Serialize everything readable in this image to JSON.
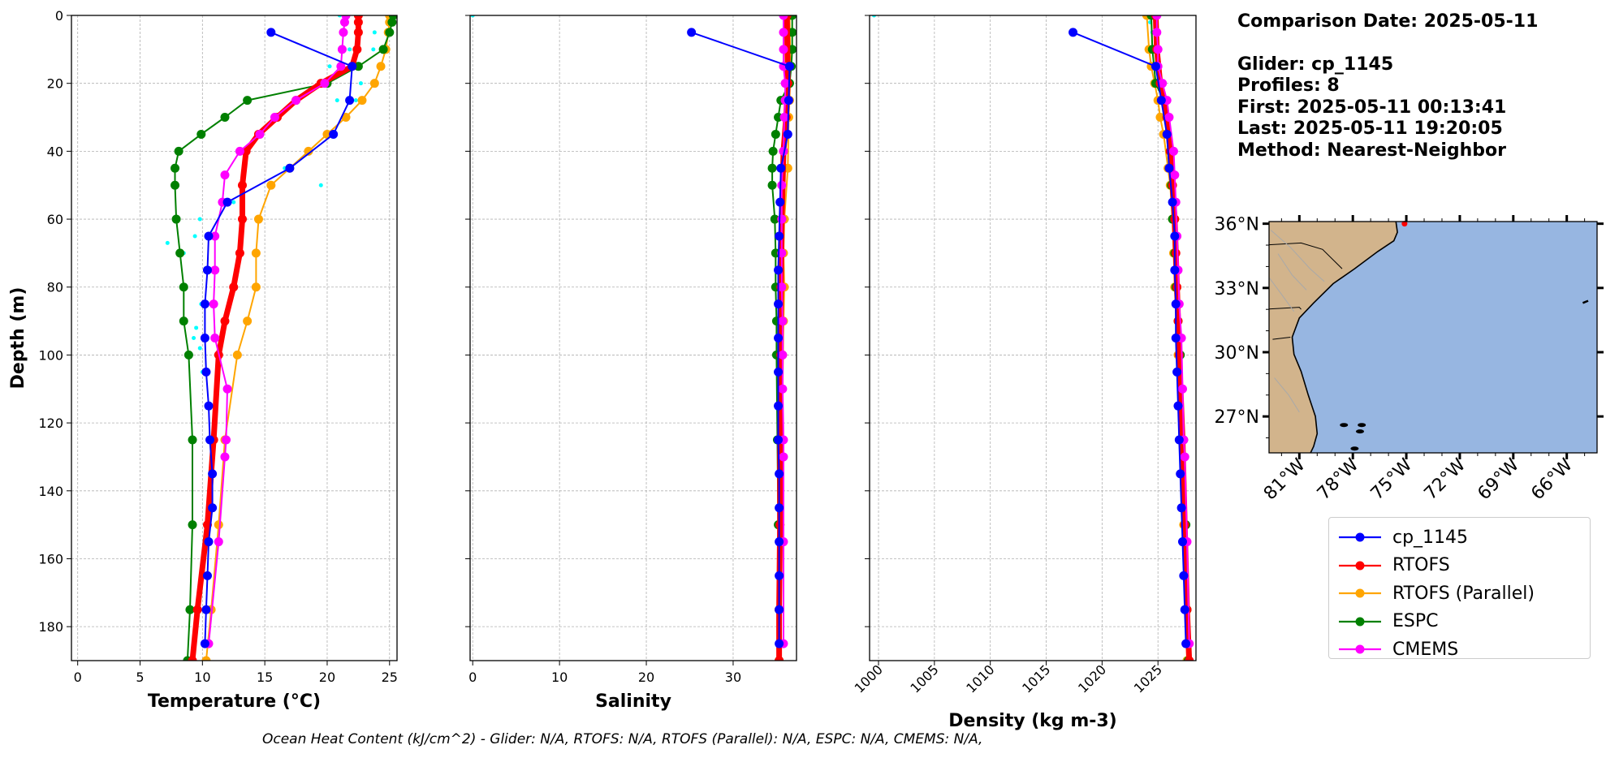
{
  "figure": {
    "footnote": "Ocean Heat Content (kJ/cm^2) - Glider: N/A,  RTOFS: N/A,  RTOFS (Parallel): N/A,  ESPC: N/A,  CMEMS: N/A,"
  },
  "info": {
    "comparison_date": "Comparison Date: 2025-05-11",
    "glider": "Glider: cp_1145",
    "profiles": "Profiles: 8",
    "first": "First: 2025-05-11 00:13:41",
    "last": "Last: 2025-05-11 19:20:05",
    "method": "Method: Nearest-Neighbor"
  },
  "legend": [
    {
      "name": "cp_1145",
      "color": "#0000ff"
    },
    {
      "name": "RTOFS",
      "color": "#ff0000"
    },
    {
      "name": "RTOFS (Parallel)",
      "color": "#ffa500"
    },
    {
      "name": "ESPC",
      "color": "#008000"
    },
    {
      "name": "CMEMS",
      "color": "#ff00ff"
    }
  ],
  "colors": {
    "glider_raw": "#00ffff",
    "ocean": "#97b6e1",
    "land": "#d2b48c",
    "rivers": "#a9a9a9"
  },
  "chart_data": [
    {
      "type": "line",
      "xlabel": "Temperature (°C)",
      "ylabel": "Depth (m)",
      "xlim": [
        -0.5,
        25.6
      ],
      "ylim": [
        190,
        0
      ],
      "xticks": [
        0,
        5,
        10,
        15,
        20,
        25
      ],
      "yticks": [
        0,
        20,
        40,
        60,
        80,
        100,
        120,
        140,
        160,
        180
      ],
      "grid": true,
      "series": [
        {
          "name": "cp_1145",
          "depth": [
            5,
            15,
            25,
            35,
            45,
            55,
            65,
            75,
            85,
            95,
            105,
            115,
            125,
            135,
            145,
            155,
            165,
            175,
            185
          ],
          "values": [
            15.5,
            22.0,
            21.8,
            20.5,
            17.0,
            12.0,
            10.5,
            10.4,
            10.2,
            10.2,
            10.3,
            10.5,
            10.6,
            10.8,
            10.8,
            10.5,
            10.4,
            10.3,
            10.2
          ]
        },
        {
          "name": "RTOFS",
          "depth": [
            0,
            2,
            5,
            10,
            15,
            20,
            25,
            30,
            35,
            40,
            50,
            60,
            70,
            80,
            90,
            100,
            125,
            150,
            175,
            190
          ],
          "values": [
            22.5,
            22.5,
            22.5,
            22.4,
            22.0,
            19.5,
            17.5,
            16.0,
            14.5,
            13.5,
            13.2,
            13.2,
            13.0,
            12.5,
            11.8,
            11.3,
            10.9,
            10.4,
            9.6,
            9.2
          ]
        },
        {
          "name": "RTOFS (Parallel)",
          "depth": [
            0,
            2,
            5,
            10,
            15,
            20,
            25,
            30,
            35,
            40,
            45,
            50,
            60,
            70,
            80,
            90,
            100,
            125,
            150,
            175,
            190
          ],
          "values": [
            25.0,
            25.0,
            24.9,
            24.7,
            24.3,
            23.8,
            22.8,
            21.5,
            20.0,
            18.5,
            17.0,
            15.5,
            14.5,
            14.3,
            14.3,
            13.6,
            12.8,
            11.8,
            11.3,
            10.7,
            10.3
          ]
        },
        {
          "name": "ESPC",
          "depth": [
            0,
            2,
            5,
            10,
            15,
            20,
            25,
            30,
            35,
            40,
            45,
            50,
            60,
            70,
            80,
            90,
            100,
            125,
            150,
            175,
            190
          ],
          "values": [
            25.3,
            25.2,
            25.0,
            24.5,
            22.5,
            20.0,
            13.6,
            11.8,
            9.9,
            8.1,
            7.8,
            7.8,
            7.9,
            8.2,
            8.5,
            8.5,
            8.9,
            9.2,
            9.2,
            9.0,
            8.8
          ]
        },
        {
          "name": "CMEMS",
          "depth": [
            0,
            2,
            5,
            10,
            15,
            20,
            25,
            30,
            35,
            40,
            47,
            55,
            65,
            75,
            85,
            95,
            110,
            125,
            130,
            155,
            185
          ],
          "values": [
            21.5,
            21.4,
            21.3,
            21.2,
            21.1,
            19.8,
            17.5,
            15.8,
            14.6,
            13.0,
            11.8,
            11.6,
            11.0,
            11.0,
            10.9,
            11.0,
            12.0,
            11.9,
            11.8,
            11.3,
            10.5
          ]
        },
        {
          "name": "cp_1145 raw",
          "depth": [
            0,
            5,
            5,
            10,
            10,
            15,
            20,
            25,
            25,
            30,
            35,
            45,
            50,
            55,
            60,
            65,
            67,
            70,
            75,
            85,
            92,
            95,
            98,
            105
          ],
          "values": [
            21.0,
            23.8,
            22.5,
            23.7,
            21.8,
            20.2,
            22.7,
            22.3,
            20.8,
            21.5,
            20.0,
            16.6,
            19.5,
            12.5,
            9.8,
            9.4,
            7.2,
            8.5,
            10.5,
            9.9,
            9.5,
            9.3,
            9.8,
            10.0
          ]
        }
      ]
    },
    {
      "type": "line",
      "xlabel": "Salinity",
      "xlim": [
        -0.3,
        37.3
      ],
      "ylim": [
        190,
        0
      ],
      "xticks": [
        0,
        10,
        20,
        30
      ],
      "grid": true,
      "series": [
        {
          "name": "cp_1145",
          "depth": [
            5,
            15,
            25,
            35,
            45,
            55,
            65,
            75,
            85,
            95,
            105,
            115,
            125,
            135,
            145,
            155,
            165,
            175,
            185
          ],
          "values": [
            25.2,
            36.5,
            36.4,
            36.3,
            35.5,
            35.4,
            35.3,
            35.2,
            35.2,
            35.2,
            35.2,
            35.2,
            35.2,
            35.3,
            35.3,
            35.3,
            35.3,
            35.3,
            35.3
          ]
        },
        {
          "name": "RTOFS",
          "depth": [
            0,
            20,
            30,
            40,
            60,
            80,
            100,
            125,
            150,
            175,
            190
          ],
          "values": [
            36.2,
            36.3,
            36.1,
            35.8,
            35.6,
            35.5,
            35.5,
            35.4,
            35.4,
            35.3,
            35.3
          ]
        },
        {
          "name": "RTOFS (Parallel)",
          "depth": [
            0,
            15,
            25,
            30,
            45,
            60,
            70,
            80,
            90,
            100,
            125,
            150,
            175,
            190
          ],
          "values": [
            36.5,
            36.6,
            36.5,
            36.4,
            36.3,
            35.9,
            35.8,
            35.9,
            35.8,
            35.7,
            35.5,
            35.4,
            35.3,
            35.3
          ]
        },
        {
          "name": "ESPC",
          "depth": [
            0,
            5,
            10,
            15,
            20,
            25,
            30,
            35,
            40,
            45,
            50,
            60,
            70,
            80,
            90,
            100,
            125,
            150,
            175,
            190
          ],
          "values": [
            36.8,
            36.8,
            36.8,
            36.7,
            36.5,
            35.5,
            35.2,
            34.9,
            34.6,
            34.5,
            34.5,
            34.8,
            34.9,
            34.9,
            35.0,
            35.0,
            35.1,
            35.2,
            35.3,
            35.3
          ]
        },
        {
          "name": "CMEMS",
          "depth": [
            0,
            5,
            10,
            15,
            20,
            25,
            30,
            40,
            50,
            60,
            70,
            80,
            90,
            100,
            110,
            125,
            130,
            155,
            185
          ],
          "values": [
            35.8,
            35.8,
            35.8,
            35.8,
            36.0,
            36.0,
            35.9,
            35.8,
            35.6,
            35.6,
            35.6,
            35.6,
            35.7,
            35.7,
            35.7,
            35.8,
            35.8,
            35.8,
            35.8
          ]
        },
        {
          "name": "cp_1145 raw",
          "depth": [
            0,
            0,
            5,
            10
          ],
          "values": [
            0.0,
            35.5,
            35.7,
            35.8
          ]
        }
      ]
    },
    {
      "type": "line",
      "xlabel": "Density (kg m-3)",
      "xlim": [
        999.2,
        1028.4
      ],
      "ylim": [
        190,
        0
      ],
      "xticks": [
        1000,
        1005,
        1010,
        1015,
        1020,
        1025
      ],
      "grid": true,
      "series": [
        {
          "name": "cp_1145",
          "depth": [
            5,
            15,
            25,
            35,
            45,
            55,
            65,
            75,
            85,
            95,
            105,
            115,
            125,
            135,
            145,
            155,
            165,
            175,
            185
          ],
          "values": [
            1017.4,
            1024.8,
            1025.3,
            1025.8,
            1026.0,
            1026.3,
            1026.5,
            1026.5,
            1026.6,
            1026.6,
            1026.7,
            1026.8,
            1026.9,
            1027.0,
            1027.1,
            1027.2,
            1027.3,
            1027.4,
            1027.5
          ]
        },
        {
          "name": "RTOFS",
          "depth": [
            0,
            10,
            20,
            25,
            30,
            40,
            50,
            60,
            70,
            80,
            90,
            100,
            125,
            150,
            175,
            190
          ],
          "values": [
            1024.8,
            1024.9,
            1025.2,
            1025.6,
            1025.8,
            1026.1,
            1026.3,
            1026.5,
            1026.6,
            1026.7,
            1026.8,
            1026.9,
            1027.2,
            1027.4,
            1027.6,
            1027.8
          ]
        },
        {
          "name": "RTOFS (Parallel)",
          "depth": [
            0,
            10,
            15,
            20,
            25,
            30,
            35,
            45,
            50,
            60,
            70,
            80,
            100,
            125,
            150,
            175,
            190
          ],
          "values": [
            1024.0,
            1024.2,
            1024.4,
            1024.7,
            1025.0,
            1025.2,
            1025.5,
            1025.9,
            1026.1,
            1026.3,
            1026.4,
            1026.5,
            1026.8,
            1027.1,
            1027.3,
            1027.5,
            1027.6
          ]
        },
        {
          "name": "ESPC",
          "depth": [
            0,
            10,
            20,
            25,
            30,
            40,
            50,
            60,
            70,
            80,
            90,
            100,
            125,
            150,
            175,
            190
          ],
          "values": [
            1024.4,
            1024.5,
            1024.8,
            1025.5,
            1025.9,
            1026.1,
            1026.2,
            1026.3,
            1026.5,
            1026.6,
            1026.8,
            1027.0,
            1027.3,
            1027.5,
            1027.6,
            1027.7
          ]
        },
        {
          "name": "CMEMS",
          "depth": [
            0,
            5,
            10,
            15,
            20,
            25,
            30,
            40,
            47,
            55,
            65,
            75,
            85,
            95,
            110,
            125,
            130,
            155,
            185
          ],
          "values": [
            1024.9,
            1024.9,
            1025.0,
            1025.0,
            1025.4,
            1025.8,
            1026.0,
            1026.4,
            1026.5,
            1026.6,
            1026.7,
            1026.8,
            1026.9,
            1027.1,
            1027.2,
            1027.3,
            1027.4,
            1027.6,
            1027.8
          ]
        },
        {
          "name": "cp_1145 raw",
          "depth": [
            0,
            2,
            5,
            10
          ],
          "values": [
            999.6,
            1024.3,
            1024.5,
            1024.6
          ]
        }
      ]
    },
    {
      "type": "map",
      "lat_ticks": [
        "36°N",
        "33°N",
        "30°N",
        "27°N"
      ],
      "lon_ticks": [
        "81°W",
        "78°W",
        "75°W",
        "72°W",
        "69°W",
        "66°W"
      ],
      "lat_values": [
        36,
        33,
        30,
        27
      ],
      "lon_values": [
        81,
        78,
        75,
        72,
        69,
        66
      ],
      "lat_range": [
        25.3,
        36.1
      ],
      "lon_range": [
        82.7,
        64.3
      ],
      "glider_marker": {
        "lat": 36.0,
        "lon": 75.1
      }
    }
  ]
}
